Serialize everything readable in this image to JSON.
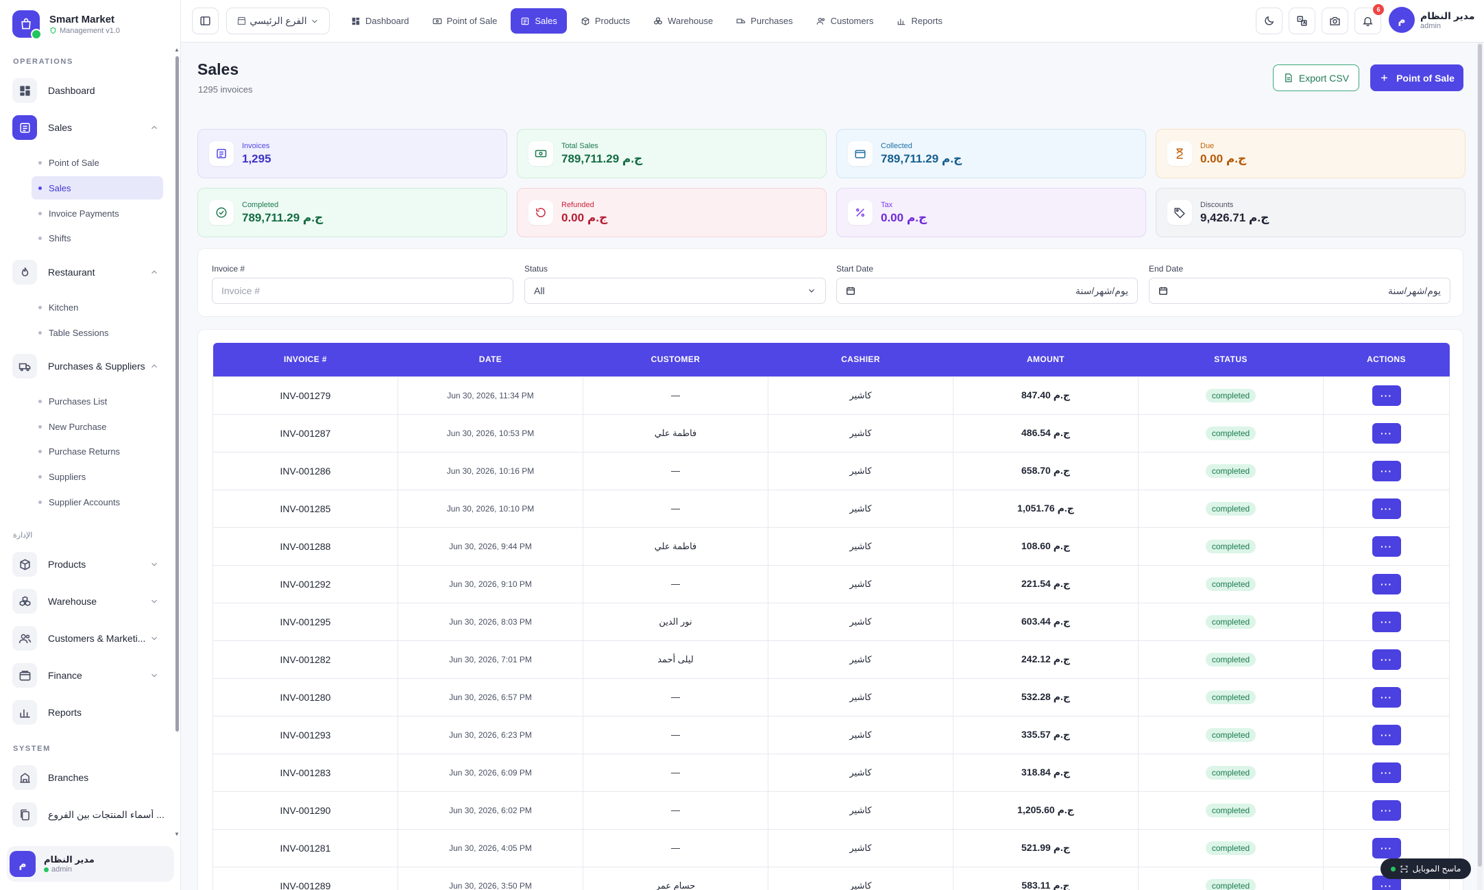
{
  "brand": {
    "name": "Smart Market",
    "version": "Management v1.0"
  },
  "sidebar": {
    "sections": {
      "operations": "OPERATIONS",
      "management": "الإدارة",
      "system": "SYSTEM"
    },
    "items": {
      "dashboard": "Dashboard",
      "sales": "Sales",
      "restaurant": "Restaurant",
      "purchases": "Purchases & Suppliers",
      "products": "Products",
      "warehouse": "Warehouse",
      "customers": "Customers & Marketi...",
      "finance": "Finance",
      "reports": "Reports",
      "branches": "Branches",
      "branch_products": "أسماء المنتجات بين الفروع ..."
    },
    "sales_sub": [
      "Point of Sale",
      "Sales",
      "Invoice Payments",
      "Shifts"
    ],
    "restaurant_sub": [
      "Kitchen",
      "Table Sessions"
    ],
    "purchases_sub": [
      "Purchases List",
      "New Purchase",
      "Purchase Returns",
      "Suppliers",
      "Supplier Accounts"
    ],
    "user": {
      "initial": "م",
      "name": "مدير النظام",
      "role": "admin"
    }
  },
  "topbar": {
    "branch": "الفرع الرئيسي",
    "nav": [
      "Dashboard",
      "Point of Sale",
      "Sales",
      "Products",
      "Warehouse",
      "Purchases",
      "Customers",
      "Reports"
    ],
    "notifications": "6",
    "user": {
      "initial": "م",
      "name": "مدير النظام",
      "role": "admin"
    }
  },
  "page": {
    "title": "Sales",
    "subtitle": "1295 invoices",
    "export_label": "Export CSV",
    "pos_label": "Point of Sale"
  },
  "stats": [
    {
      "label": "Invoices",
      "value": "1,295"
    },
    {
      "label": "Total Sales",
      "value": "789,711.29 ج.م"
    },
    {
      "label": "Collected",
      "value": "789,711.29 ج.م"
    },
    {
      "label": "Due",
      "value": "0.00 ج.م"
    },
    {
      "label": "Completed",
      "value": "789,711.29 ج.م"
    },
    {
      "label": "Refunded",
      "value": "0.00 ج.م"
    },
    {
      "label": "Tax",
      "value": "0.00 ج.م"
    },
    {
      "label": "Discounts",
      "value": "9,426.71 ج.م"
    }
  ],
  "filters": {
    "invoice_label": "Invoice #",
    "invoice_placeholder": "Invoice #",
    "status_label": "Status",
    "status_value": "All",
    "start_label": "Start Date",
    "start_value": "يوم/شهر/سنة",
    "end_label": "End Date",
    "end_value": "يوم/شهر/سنة"
  },
  "table": {
    "headers": [
      "INVOICE #",
      "DATE",
      "CUSTOMER",
      "CASHIER",
      "AMOUNT",
      "STATUS",
      "ACTIONS"
    ],
    "rows": [
      {
        "invoice": "INV-001279",
        "date": "Jun 30, 2026, 11:34 PM",
        "customer": "—",
        "cashier": "كاشير",
        "amount": "847.40 ج.م",
        "status": "completed"
      },
      {
        "invoice": "INV-001287",
        "date": "Jun 30, 2026, 10:53 PM",
        "customer": "فاطمة علي",
        "cashier": "كاشير",
        "amount": "486.54 ج.م",
        "status": "completed"
      },
      {
        "invoice": "INV-001286",
        "date": "Jun 30, 2026, 10:16 PM",
        "customer": "—",
        "cashier": "كاشير",
        "amount": "658.70 ج.م",
        "status": "completed"
      },
      {
        "invoice": "INV-001285",
        "date": "Jun 30, 2026, 10:10 PM",
        "customer": "—",
        "cashier": "كاشير",
        "amount": "1,051.76 ج.م",
        "status": "completed"
      },
      {
        "invoice": "INV-001288",
        "date": "Jun 30, 2026, 9:44 PM",
        "customer": "فاطمة علي",
        "cashier": "كاشير",
        "amount": "108.60 ج.م",
        "status": "completed"
      },
      {
        "invoice": "INV-001292",
        "date": "Jun 30, 2026, 9:10 PM",
        "customer": "—",
        "cashier": "كاشير",
        "amount": "221.54 ج.م",
        "status": "completed"
      },
      {
        "invoice": "INV-001295",
        "date": "Jun 30, 2026, 8:03 PM",
        "customer": "نور الدين",
        "cashier": "كاشير",
        "amount": "603.44 ج.م",
        "status": "completed"
      },
      {
        "invoice": "INV-001282",
        "date": "Jun 30, 2026, 7:01 PM",
        "customer": "ليلى أحمد",
        "cashier": "كاشير",
        "amount": "242.12 ج.م",
        "status": "completed"
      },
      {
        "invoice": "INV-001280",
        "date": "Jun 30, 2026, 6:57 PM",
        "customer": "—",
        "cashier": "كاشير",
        "amount": "532.28 ج.م",
        "status": "completed"
      },
      {
        "invoice": "INV-001293",
        "date": "Jun 30, 2026, 6:23 PM",
        "customer": "—",
        "cashier": "كاشير",
        "amount": "335.57 ج.م",
        "status": "completed"
      },
      {
        "invoice": "INV-001283",
        "date": "Jun 30, 2026, 6:09 PM",
        "customer": "—",
        "cashier": "كاشير",
        "amount": "318.84 ج.م",
        "status": "completed"
      },
      {
        "invoice": "INV-001290",
        "date": "Jun 30, 2026, 6:02 PM",
        "customer": "—",
        "cashier": "كاشير",
        "amount": "1,205.60 ج.م",
        "status": "completed"
      },
      {
        "invoice": "INV-001281",
        "date": "Jun 30, 2026, 4:05 PM",
        "customer": "—",
        "cashier": "كاشير",
        "amount": "521.99 ج.م",
        "status": "completed"
      },
      {
        "invoice": "INV-001289",
        "date": "Jun 30, 2026, 3:50 PM",
        "customer": "حسام عمر",
        "cashier": "كاشير",
        "amount": "583.11 ج.م",
        "status": "completed"
      }
    ],
    "action_label": "···"
  },
  "scanner_label": "ماسح الموبايل",
  "colors": {
    "accent": "#5046e5",
    "success": "#22c55e",
    "danger": "#ef4444"
  }
}
